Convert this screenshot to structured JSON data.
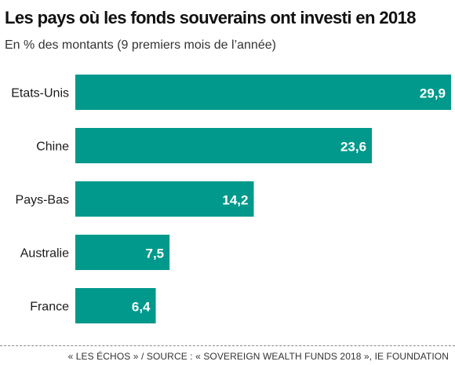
{
  "header": {
    "title": "Les pays où les fonds souverains ont investi en 2018",
    "subtitle": "En % des montants (9 premiers mois de l’année)"
  },
  "footer": {
    "source": "« LES ÉCHOS » / SOURCE : « SOVEREIGN WEALTH FUNDS 2018 », IE FOUNDATION"
  },
  "colors": {
    "bar": "#00998c",
    "bar_label": "#ffffff",
    "category_label": "#1a1a1a"
  },
  "chart_data": {
    "type": "bar",
    "orientation": "horizontal",
    "title": "Les pays où les fonds souverains ont investi en 2018",
    "subtitle": "En % des montants (9 premiers mois de l’année)",
    "categories": [
      "Etats-Unis",
      "Chine",
      "Pays-Bas",
      "Australie",
      "France"
    ],
    "values": [
      29.9,
      23.6,
      14.2,
      7.5,
      6.4
    ],
    "value_labels": [
      "29,9",
      "23,6",
      "14,2",
      "7,5",
      "6,4"
    ],
    "xlim": [
      0,
      29.9
    ],
    "grid": false,
    "legend": "none"
  }
}
